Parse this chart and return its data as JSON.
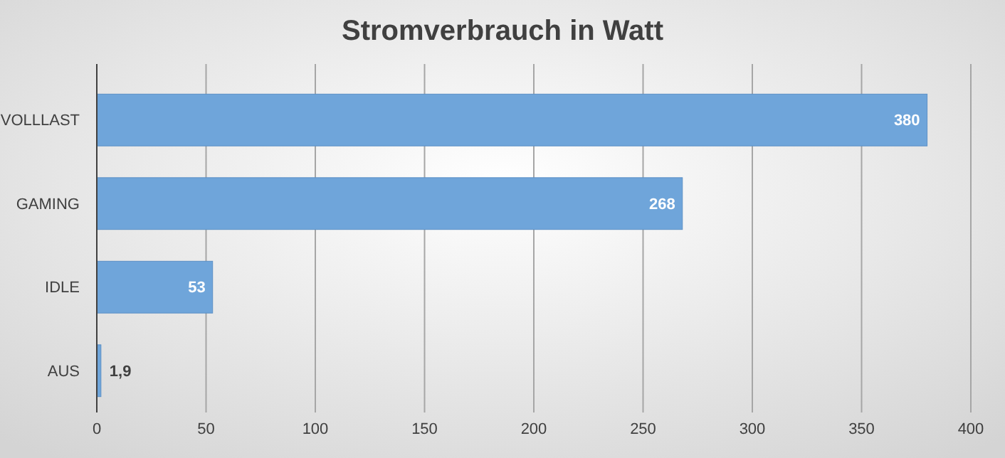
{
  "chart_data": {
    "type": "bar",
    "orientation": "horizontal",
    "title": "Stromverbrauch in Watt",
    "categories": [
      "VOLLLAST",
      "GAMING",
      "IDLE",
      "AUS"
    ],
    "values": [
      380,
      268,
      53,
      1.9
    ],
    "value_labels": [
      "380",
      "268",
      "53",
      "1,9"
    ],
    "color": "#6fa5da",
    "xlim": [
      0,
      400
    ],
    "xticks": [
      0,
      50,
      100,
      150,
      200,
      250,
      300,
      350,
      400
    ],
    "grid": "x"
  }
}
